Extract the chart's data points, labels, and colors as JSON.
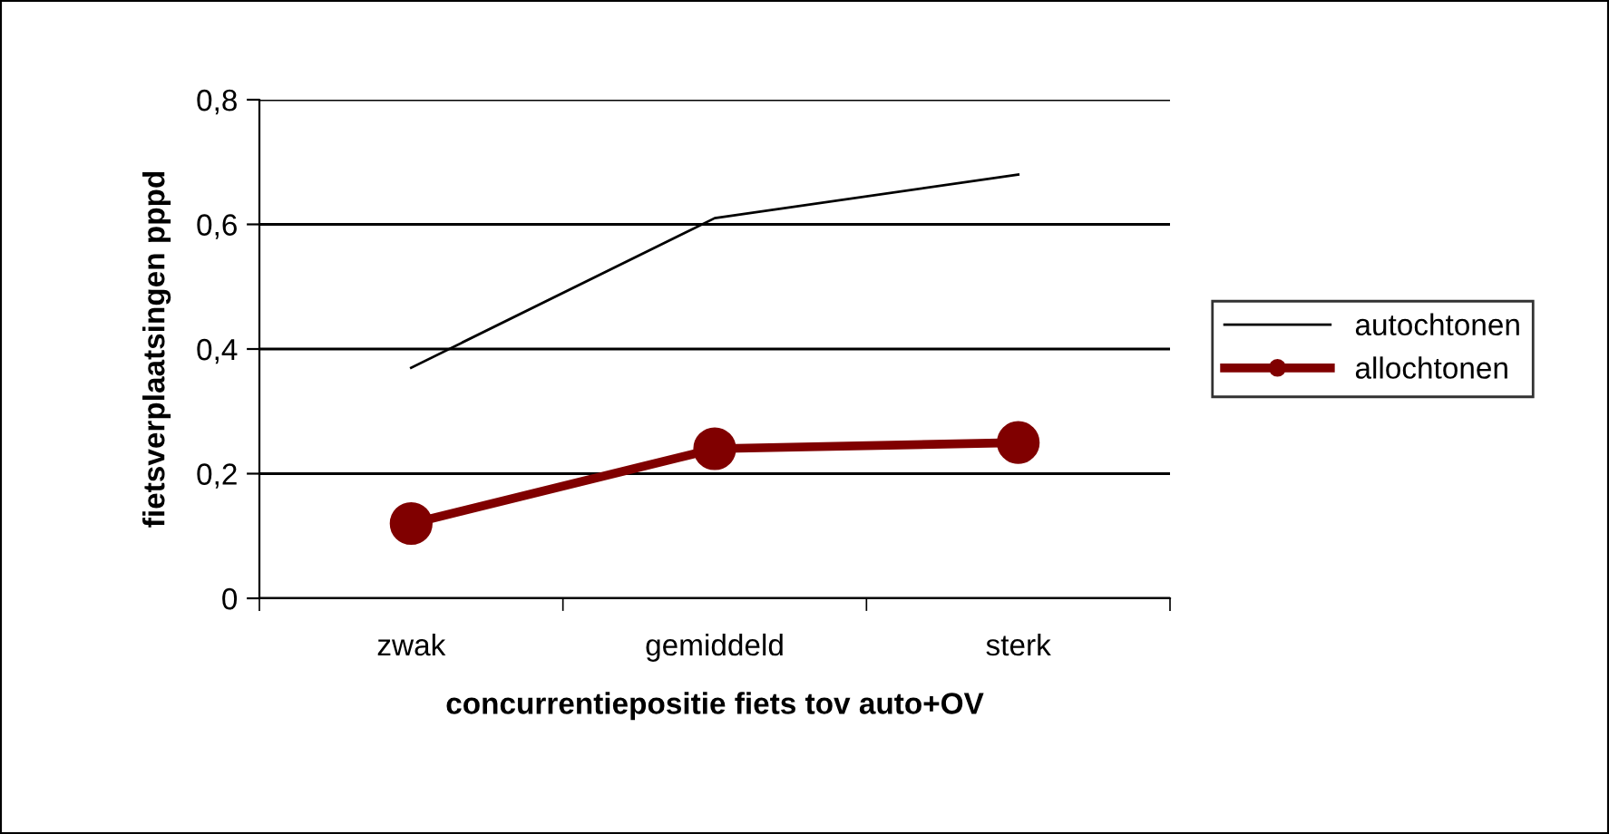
{
  "chart_data": {
    "type": "line",
    "xlabel": "concurrentiepositie fiets tov auto+OV",
    "ylabel": "fietsverplaatsingen pppd",
    "categories": [
      "zwak",
      "gemiddeld",
      "sterk"
    ],
    "series": [
      {
        "name": "autochtonen",
        "color": "#000000",
        "marker": "none",
        "values": [
          0.37,
          0.61,
          0.68
        ]
      },
      {
        "name": "allochtonen",
        "color": "#800000",
        "marker": "circle",
        "values": [
          0.12,
          0.24,
          0.25
        ]
      }
    ],
    "ylim": [
      0,
      0.8
    ],
    "yticks": [
      {
        "value": 0,
        "label": "0"
      },
      {
        "value": 0.2,
        "label": "0,2"
      },
      {
        "value": 0.4,
        "label": "0,4"
      },
      {
        "value": 0.6,
        "label": "0,6"
      },
      {
        "value": 0.8,
        "label": "0,8"
      }
    ],
    "grid": "y",
    "legend": "right"
  }
}
